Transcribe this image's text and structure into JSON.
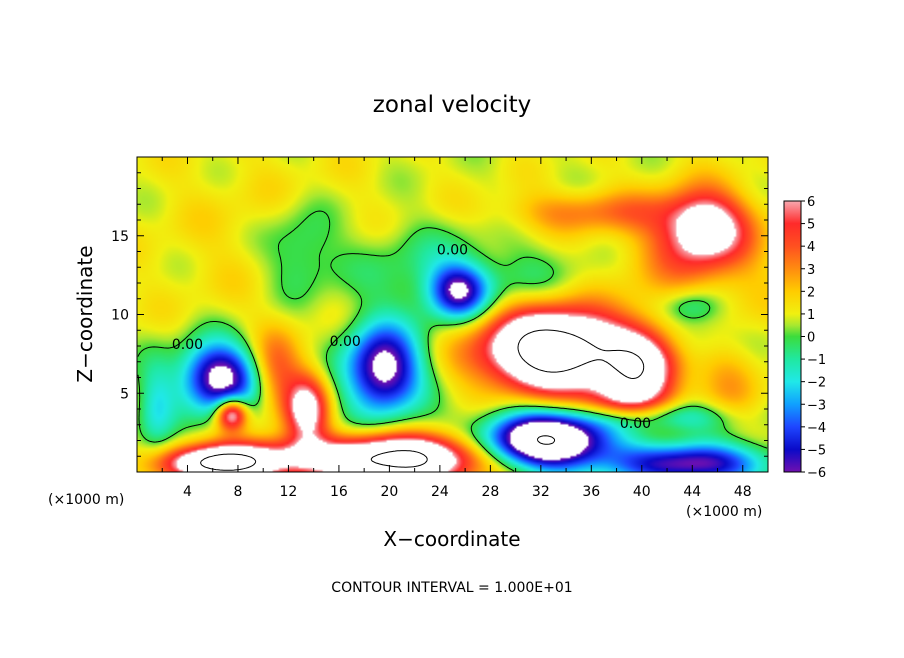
{
  "chart_data": {
    "type": "heatmap",
    "title": "zonal velocity",
    "xlabel": "X−coordinate",
    "ylabel": "Z−coordinate",
    "x_unit": "(×1000 m)",
    "x_unit_right": "(×1000 m)",
    "xlim": [
      0,
      50
    ],
    "ylim": [
      0,
      20
    ],
    "x_ticks": [
      4,
      8,
      12,
      16,
      20,
      24,
      28,
      32,
      36,
      40,
      44,
      48
    ],
    "y_ticks": [
      5,
      10,
      15
    ],
    "colorbar": {
      "min": -6,
      "max": 6,
      "ticks": [
        6,
        5,
        4,
        3,
        2,
        1,
        0,
        -1,
        -2,
        -3,
        -4,
        -5,
        -6
      ],
      "tick_labels": [
        "6",
        "5",
        "4",
        "3",
        "2",
        "1",
        "0",
        "−1",
        "−2",
        "−3",
        "−4",
        "−5",
        "−6"
      ],
      "stops": [
        {
          "v": 6,
          "color": "#f8a8b0"
        },
        {
          "v": 5,
          "color": "#ff2a2a"
        },
        {
          "v": 4,
          "color": "#ff5020"
        },
        {
          "v": 3,
          "color": "#ff8c10"
        },
        {
          "v": 2,
          "color": "#ffcc00"
        },
        {
          "v": 1,
          "color": "#f0f010"
        },
        {
          "v": 0.5,
          "color": "#a8e830"
        },
        {
          "v": 0,
          "color": "#3cdc3c"
        },
        {
          "v": -1,
          "color": "#20e8a0"
        },
        {
          "v": -2,
          "color": "#20e8e8"
        },
        {
          "v": -3,
          "color": "#10a0ff"
        },
        {
          "v": -4,
          "color": "#1e46ff"
        },
        {
          "v": -5,
          "color": "#0a0ac8"
        },
        {
          "v": -6,
          "color": "#7010b0"
        }
      ],
      "out_of_range_color": "#ffffff"
    },
    "field_features": [
      {
        "x": 45,
        "z": 15.5,
        "sx": 3.2,
        "sz": 2.2,
        "amp": 6
      },
      {
        "x": 36,
        "z": 16.5,
        "sx": 7,
        "sz": 1.3,
        "amp": 2.3
      },
      {
        "x": 44,
        "z": 13.5,
        "sx": 6,
        "sz": 4,
        "amp": 2
      },
      {
        "x": 10,
        "z": 15,
        "sx": 10,
        "sz": 6,
        "amp": 0.6
      },
      {
        "x": 13,
        "z": 14,
        "sx": 3,
        "sz": 3,
        "amp": -2
      },
      {
        "x": 22,
        "z": 13,
        "sx": 6,
        "sz": 3,
        "amp": -1.3
      },
      {
        "x": 25.5,
        "z": 11.5,
        "sx": 2.3,
        "sz": 1.7,
        "amp": -6
      },
      {
        "x": 30.5,
        "z": 11.5,
        "sx": 7.5,
        "sz": 2.8,
        "amp": -1.2
      },
      {
        "x": 33,
        "z": 7.8,
        "sx": 5.5,
        "sz": 2.6,
        "amp": 12
      },
      {
        "x": 40,
        "z": 6.5,
        "sx": 3,
        "sz": 2.5,
        "amp": 7
      },
      {
        "x": 44,
        "z": 8.5,
        "sx": 4,
        "sz": 1.5,
        "amp": -1.6
      },
      {
        "x": 44,
        "z": 10.5,
        "sx": 2.5,
        "sz": 1.2,
        "amp": -2.5
      },
      {
        "x": 6.5,
        "z": 6,
        "sx": 3,
        "sz": 2.2,
        "amp": -8
      },
      {
        "x": 7.5,
        "z": 3.7,
        "sx": 1.2,
        "sz": 1,
        "amp": 7
      },
      {
        "x": 19.5,
        "z": 6.5,
        "sx": 3,
        "sz": 2.8,
        "amp": -8
      },
      {
        "x": 13.5,
        "z": 4,
        "sx": 1.7,
        "sz": 2.2,
        "amp": 6
      },
      {
        "x": 11,
        "z": 6.5,
        "sx": 2,
        "sz": 2.5,
        "amp": 3
      },
      {
        "x": 10.5,
        "z": 1,
        "sx": 6,
        "sz": 1.2,
        "amp": 4
      },
      {
        "x": 6.5,
        "z": 0.5,
        "sx": 4,
        "sz": 1,
        "amp": 9
      },
      {
        "x": 21,
        "z": 0.8,
        "sx": 6.5,
        "sz": 1.5,
        "amp": 10
      },
      {
        "x": 32.5,
        "z": 2,
        "sx": 5,
        "sz": 1.8,
        "amp": -11
      },
      {
        "x": 44,
        "z": 0.5,
        "sx": 6,
        "sz": 1.3,
        "amp": -7
      },
      {
        "x": 42,
        "z": 3.5,
        "sx": 5,
        "sz": 1,
        "amp": -3
      },
      {
        "x": 38,
        "z": 4.5,
        "sx": 3,
        "sz": 1.2,
        "amp": 3
      },
      {
        "x": 47,
        "z": 6,
        "sx": 2.5,
        "sz": 3,
        "amp": 1.5
      },
      {
        "x": 1.5,
        "z": 4,
        "sx": 1.5,
        "sz": 3,
        "amp": -2.5
      }
    ],
    "contour_labels": [
      {
        "x": 25,
        "z": 13.8,
        "text": "0.00"
      },
      {
        "x": 4,
        "z": 7.8,
        "text": "0.00"
      },
      {
        "x": 16.5,
        "z": 8,
        "text": "0.00"
      },
      {
        "x": 39.5,
        "z": 2.8,
        "text": "0.00"
      }
    ],
    "footer": "CONTOUR INTERVAL = 1.000E+01",
    "grid": false,
    "legend": "colorbar-right"
  }
}
